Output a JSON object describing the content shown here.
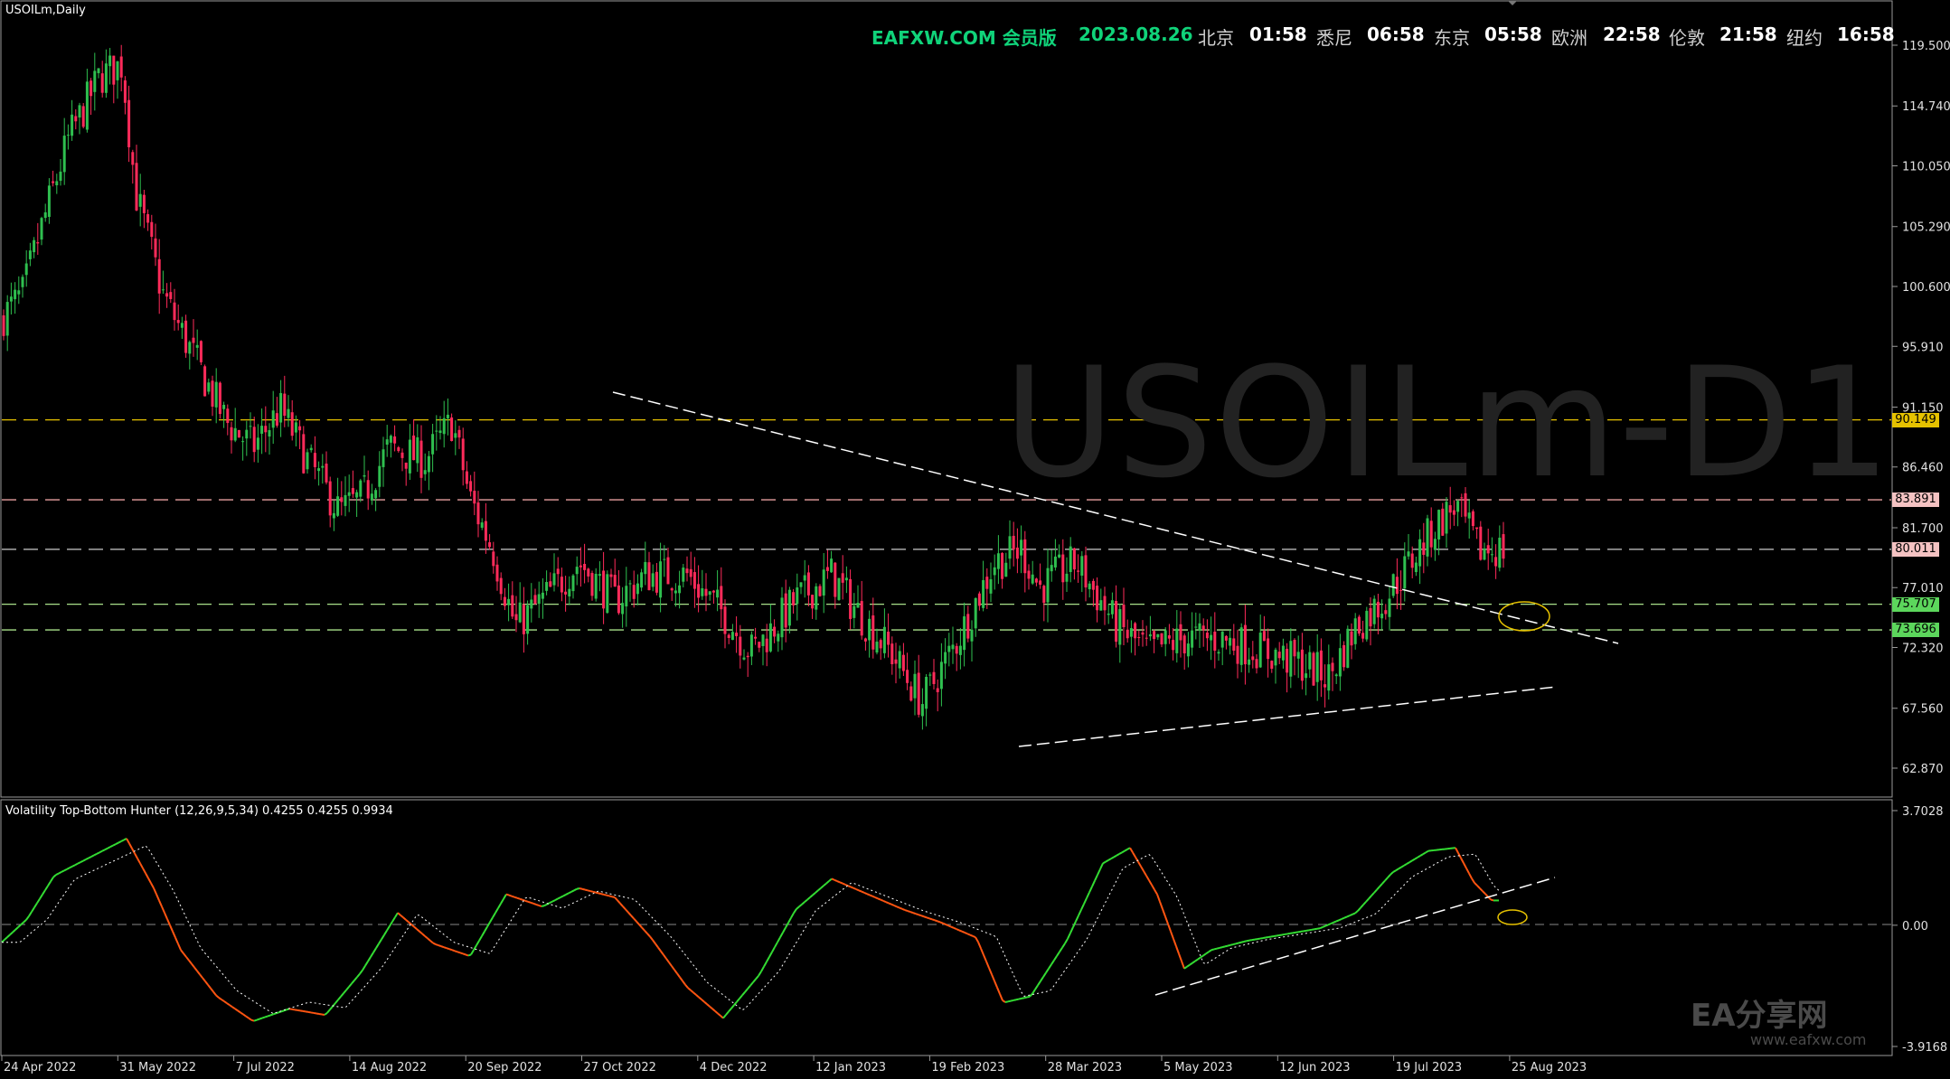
{
  "symbol_title": "USOILm,Daily",
  "watermark": "USOILm-D1",
  "header": {
    "brand": "EAFXW.COM 会员版",
    "date": "2023.08.26",
    "clocks": [
      {
        "city": "北京",
        "time": "01:58"
      },
      {
        "city": "悉尼",
        "time": "06:58"
      },
      {
        "city": "东京",
        "time": "05:58"
      },
      {
        "city": "欧洲",
        "time": "22:58"
      },
      {
        "city": "伦敦",
        "time": "21:58"
      },
      {
        "city": "纽约",
        "time": "16:58"
      }
    ]
  },
  "price_axis": [
    "119.500",
    "114.740",
    "110.050",
    "105.290",
    "100.600",
    "95.910",
    "91.150",
    "86.460",
    "81.700",
    "77.010",
    "72.320",
    "67.560",
    "62.870"
  ],
  "price_levels": [
    {
      "value": "90.149",
      "line_color": "#e6c200",
      "label_bg": "#e6c200"
    },
    {
      "value": "83.891",
      "line_color": "#e8a0a0",
      "label_bg": "#f4c2c2"
    },
    {
      "value": "80.011",
      "line_color": "#cccccc",
      "label_bg": "#f4c2c2"
    },
    {
      "value": "75.707",
      "line_color": "#a8e08a",
      "label_bg": "#5cd65c"
    },
    {
      "value": "73.696",
      "line_color": "#a8e08a",
      "label_bg": "#5cd65c"
    }
  ],
  "indicator": {
    "title": "Volatility Top-Bottom Hunter (12,26,9,5,34) 0.4255 0.4255 0.9934",
    "axis": [
      "3.7028",
      "0.00",
      "-3.9168"
    ],
    "up_color": "#33dd33",
    "down_color": "#ff5511"
  },
  "time_axis": [
    "24 Apr 2022",
    "31 May 2022",
    "7 Jul 2022",
    "14 Aug 2022",
    "20 Sep 2022",
    "27 Oct 2022",
    "4 Dec 2022",
    "12 Jan 2023",
    "19 Feb 2023",
    "28 Mar 2023",
    "5 May 2023",
    "12 Jun 2023",
    "19 Jul 2023",
    "25 Aug 2023"
  ],
  "branding": {
    "name": "EA分享网",
    "url": "www.eafxw.com"
  },
  "chart_data": {
    "type": "candlestick",
    "price_anchors": [
      [
        0,
        98
      ],
      [
        25,
        100
      ],
      [
        45,
        105
      ],
      [
        75,
        112
      ],
      [
        110,
        117
      ],
      [
        135,
        118
      ],
      [
        150,
        108
      ],
      [
        180,
        100
      ],
      [
        215,
        95
      ],
      [
        250,
        90
      ],
      [
        280,
        88
      ],
      [
        310,
        91
      ],
      [
        340,
        87
      ],
      [
        375,
        83
      ],
      [
        400,
        84
      ],
      [
        430,
        88
      ],
      [
        470,
        87
      ],
      [
        500,
        90
      ],
      [
        520,
        84
      ],
      [
        545,
        80
      ],
      [
        570,
        74
      ],
      [
        600,
        76
      ],
      [
        640,
        79
      ],
      [
        680,
        76
      ],
      [
        715,
        78
      ],
      [
        760,
        78
      ],
      [
        800,
        75
      ],
      [
        830,
        72
      ],
      [
        845,
        73
      ],
      [
        880,
        76
      ],
      [
        920,
        78
      ],
      [
        950,
        75
      ],
      [
        985,
        72
      ],
      [
        1020,
        68
      ],
      [
        1060,
        73
      ],
      [
        1100,
        79
      ],
      [
        1130,
        80
      ],
      [
        1150,
        77
      ],
      [
        1190,
        79
      ],
      [
        1235,
        74
      ],
      [
        1270,
        72
      ],
      [
        1310,
        73
      ],
      [
        1350,
        73
      ],
      [
        1400,
        72
      ],
      [
        1440,
        71
      ],
      [
        1470,
        70
      ],
      [
        1500,
        74
      ],
      [
        1530,
        76
      ],
      [
        1560,
        79
      ],
      [
        1590,
        82
      ],
      [
        1610,
        83.5
      ],
      [
        1635,
        80
      ],
      [
        1660,
        80
      ]
    ],
    "oscillator_anchors": [
      [
        0,
        -0.6
      ],
      [
        30,
        0.2
      ],
      [
        60,
        1.6
      ],
      [
        100,
        2.2
      ],
      [
        140,
        2.8
      ],
      [
        170,
        1.2
      ],
      [
        200,
        -0.8
      ],
      [
        240,
        -2.3
      ],
      [
        280,
        -3.1
      ],
      [
        320,
        -2.7
      ],
      [
        360,
        -2.9
      ],
      [
        400,
        -1.5
      ],
      [
        440,
        0.4
      ],
      [
        480,
        -0.6
      ],
      [
        520,
        -1.0
      ],
      [
        560,
        1.0
      ],
      [
        600,
        0.6
      ],
      [
        640,
        1.2
      ],
      [
        680,
        0.9
      ],
      [
        720,
        -0.4
      ],
      [
        760,
        -2.0
      ],
      [
        800,
        -3.0
      ],
      [
        840,
        -1.6
      ],
      [
        880,
        0.5
      ],
      [
        920,
        1.5
      ],
      [
        960,
        1.0
      ],
      [
        1000,
        0.5
      ],
      [
        1040,
        0.1
      ],
      [
        1080,
        -0.4
      ],
      [
        1110,
        -2.5
      ],
      [
        1140,
        -2.3
      ],
      [
        1180,
        -0.5
      ],
      [
        1220,
        2.0
      ],
      [
        1250,
        2.5
      ],
      [
        1280,
        1.0
      ],
      [
        1310,
        -1.4
      ],
      [
        1340,
        -0.8
      ],
      [
        1380,
        -0.5
      ],
      [
        1420,
        -0.3
      ],
      [
        1460,
        -0.1
      ],
      [
        1500,
        0.4
      ],
      [
        1540,
        1.7
      ],
      [
        1580,
        2.4
      ],
      [
        1610,
        2.5
      ],
      [
        1630,
        1.4
      ],
      [
        1650,
        0.8
      ]
    ],
    "ylim": [
      62.87,
      122.0
    ],
    "oscillator_ylim": [
      -3.9168,
      3.7028
    ]
  }
}
